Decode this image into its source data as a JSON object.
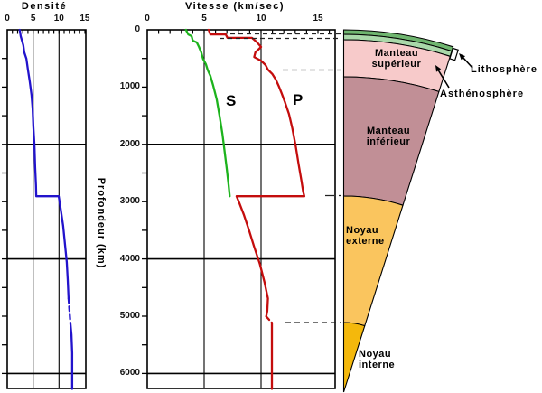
{
  "figure": {
    "density_title": "Densité",
    "velocity_title": "Vitesse (km/sec)",
    "depth_axis_label": "Profondeur (km)",
    "s_wave_label": "S",
    "p_wave_label": "P"
  },
  "wedge": {
    "labels": {
      "manteau_superieur": "Manteau\nsupérieur",
      "manteau_inferieur": "Manteau\ninférieur",
      "noyau_externe": "Noyau\nexterne",
      "noyau_interne": "Noyau\ninterne",
      "lithosphere": "Lithosphère",
      "asthenosphere": "Asthénosphère"
    },
    "colors": {
      "crust_outer": "#6fb56f",
      "crust_inner": "#a9d8a9",
      "manteau_superieur": "#f7caca",
      "manteau_inferieur": "#c18f96",
      "noyau_externe": "#fac55e",
      "noyau_interne": "#f4b80c"
    }
  },
  "chart_data": [
    {
      "id": "densite",
      "type": "line",
      "title": "Densité",
      "xlabel": "Densité",
      "ylabel": "Profondeur (km)",
      "xlim": [
        0,
        15.2
      ],
      "ylim": [
        0,
        6270
      ],
      "grid": true,
      "grid_x": [
        5,
        10
      ],
      "grid_y": [
        2000,
        4000,
        6000
      ],
      "xticks": [
        {
          "v": 0,
          "label": "0"
        },
        {
          "v": 5,
          "label": "5"
        },
        {
          "v": 10,
          "label": "10"
        },
        {
          "v": 15,
          "label": "15"
        }
      ],
      "yticks": [],
      "series": [
        {
          "key": "density-curve",
          "name": "Densité",
          "color": "#2213cc",
          "dashed": false,
          "points": [
            [
              2.4,
              0
            ],
            [
              2.6,
              110
            ],
            [
              3.1,
              270
            ],
            [
              3.3,
              395
            ],
            [
              3.7,
              505
            ],
            [
              4.0,
              695
            ],
            [
              4.35,
              900
            ],
            [
              4.7,
              1140
            ],
            [
              4.9,
              1370
            ],
            [
              5.05,
              1690
            ],
            [
              5.25,
              2005
            ],
            [
              5.4,
              2400
            ],
            [
              5.55,
              2715
            ],
            [
              5.6,
              2905
            ],
            [
              9.95,
              2905
            ],
            [
              10.3,
              3110
            ],
            [
              10.8,
              3425
            ],
            [
              11.15,
              3740
            ],
            [
              11.5,
              4055
            ],
            [
              11.7,
              4370
            ],
            [
              11.85,
              4690
            ]
          ]
        },
        {
          "key": "density-curve-dashed",
          "name": "Densité (transition graine)",
          "color": "#2213cc",
          "dashed": true,
          "points": [
            [
              11.85,
              4690
            ],
            [
              12.2,
              5115
            ]
          ]
        },
        {
          "key": "density-curve-inner",
          "name": "Densité (graine)",
          "color": "#2213cc",
          "dashed": false,
          "points": [
            [
              12.2,
              5115
            ],
            [
              12.4,
              5320
            ],
            [
              12.55,
              5640
            ],
            [
              12.55,
              6270
            ]
          ]
        }
      ]
    },
    {
      "id": "vitesse",
      "type": "line",
      "title": "Vitesse (km/sec)",
      "xlabel": "Vitesse (km/sec)",
      "ylabel": "Profondeur (km)",
      "xlim": [
        0,
        16.5
      ],
      "ylim": [
        0,
        6270
      ],
      "grid": true,
      "grid_x": [
        5,
        10
      ],
      "grid_y": [
        2000,
        4000,
        6000
      ],
      "xticks": [
        {
          "v": 0,
          "label": "0"
        },
        {
          "v": 5,
          "label": "5"
        },
        {
          "v": 10,
          "label": "10"
        },
        {
          "v": 15,
          "label": "15"
        }
      ],
      "yticks": [
        {
          "v": 0,
          "label": "0"
        },
        {
          "v": 1000,
          "label": "1000"
        },
        {
          "v": 2000,
          "label": "2000"
        },
        {
          "v": 3000,
          "label": "3000"
        },
        {
          "v": 4000,
          "label": "4000"
        },
        {
          "v": 5000,
          "label": "5000"
        },
        {
          "v": 6000,
          "label": "6000"
        }
      ],
      "series": [
        {
          "key": "s-wave-curve",
          "name": "S",
          "color": "#1db31d",
          "dashed": false,
          "points": [
            [
              3.4,
              0
            ],
            [
              3.6,
              80
            ],
            [
              3.9,
              110
            ],
            [
              4.0,
              190
            ],
            [
              4.35,
              220
            ],
            [
              4.55,
              300
            ],
            [
              4.75,
              395
            ],
            [
              4.9,
              505
            ],
            [
              5.15,
              600
            ],
            [
              5.3,
              695
            ],
            [
              5.55,
              805
            ],
            [
              5.8,
              980
            ],
            [
              6.1,
              1215
            ],
            [
              6.35,
              1500
            ],
            [
              6.6,
              1815
            ],
            [
              6.8,
              2130
            ],
            [
              7.0,
              2450
            ],
            [
              7.15,
              2715
            ],
            [
              7.25,
              2905
            ]
          ]
        },
        {
          "key": "p-wave-curve",
          "name": "P",
          "color": "#c40d0d",
          "dashed": false,
          "points": [
            [
              5.4,
              0
            ],
            [
              5.55,
              80
            ],
            [
              6.9,
              80
            ],
            [
              7.05,
              140
            ],
            [
              9.2,
              140
            ],
            [
              9.65,
              220
            ],
            [
              10.0,
              300
            ],
            [
              9.5,
              395
            ],
            [
              9.4,
              475
            ],
            [
              10.0,
              540
            ],
            [
              10.4,
              615
            ],
            [
              10.6,
              695
            ],
            [
              11.0,
              775
            ],
            [
              11.3,
              870
            ],
            [
              11.55,
              980
            ],
            [
              11.8,
              1105
            ],
            [
              12.1,
              1265
            ],
            [
              12.45,
              1470
            ],
            [
              12.75,
              1720
            ],
            [
              13.05,
              2035
            ],
            [
              13.3,
              2350
            ],
            [
              13.55,
              2635
            ],
            [
              13.7,
              2825
            ],
            [
              13.8,
              2905
            ],
            [
              7.85,
              2905
            ],
            [
              8.1,
              3030
            ],
            [
              8.5,
              3235
            ],
            [
              8.95,
              3505
            ],
            [
              9.4,
              3790
            ],
            [
              9.9,
              4090
            ],
            [
              10.3,
              4405
            ],
            [
              10.6,
              4690
            ],
            [
              10.55,
              4910
            ],
            [
              10.45,
              5005
            ]
          ]
        },
        {
          "key": "p-wave-curve-dashed",
          "name": "P (transition graine)",
          "color": "#c40d0d",
          "dashed": true,
          "points": [
            [
              10.45,
              5005
            ],
            [
              10.95,
              5115
            ]
          ]
        },
        {
          "key": "p-wave-curve-inner",
          "name": "P (graine)",
          "color": "#c40d0d",
          "dashed": false,
          "points": [
            [
              10.95,
              5115
            ],
            [
              10.95,
              6270
            ]
          ]
        }
      ]
    }
  ]
}
